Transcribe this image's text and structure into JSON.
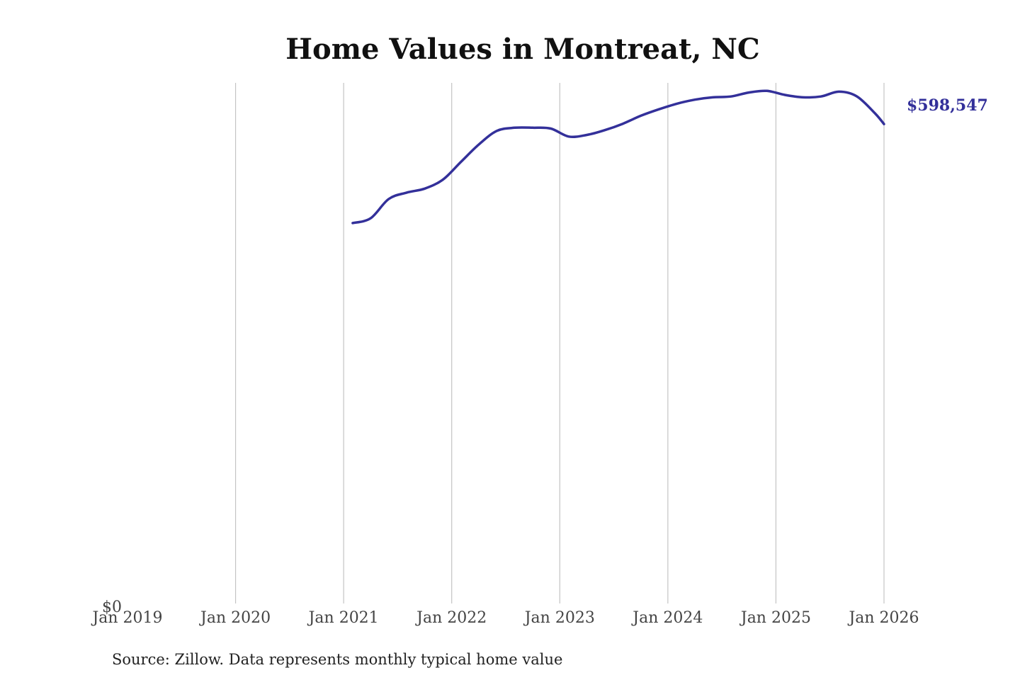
{
  "chart_data": {
    "type": "line",
    "title": "Home Values in Montreat, NC",
    "xlabel": "",
    "ylabel": "",
    "source": "Source: Zillow. Data represents monthly typical home value",
    "x_ticks": [
      "Jan 2019",
      "Jan 2020",
      "Jan 2021",
      "Jan 2022",
      "Jan 2023",
      "Jan 2024",
      "Jan 2025",
      "Jan 2026"
    ],
    "y_ticks": [
      "$0"
    ],
    "xlim": [
      "2019-01",
      "2026-01"
    ],
    "ylim": [
      0,
      650000
    ],
    "grid": "vertical",
    "series": [
      {
        "color": "#33309a",
        "end_label": "$598,547",
        "points": [
          {
            "x": "2021-02",
            "y": 475000
          },
          {
            "x": "2021-04",
            "y": 481000
          },
          {
            "x": "2021-06",
            "y": 505000
          },
          {
            "x": "2021-08",
            "y": 513000
          },
          {
            "x": "2021-10",
            "y": 518000
          },
          {
            "x": "2021-12",
            "y": 529000
          },
          {
            "x": "2022-02",
            "y": 551000
          },
          {
            "x": "2022-04",
            "y": 573000
          },
          {
            "x": "2022-06",
            "y": 590000
          },
          {
            "x": "2022-08",
            "y": 594000
          },
          {
            "x": "2022-10",
            "y": 594000
          },
          {
            "x": "2022-12",
            "y": 593000
          },
          {
            "x": "2023-02",
            "y": 583000
          },
          {
            "x": "2023-04",
            "y": 585000
          },
          {
            "x": "2023-06",
            "y": 591000
          },
          {
            "x": "2023-08",
            "y": 599000
          },
          {
            "x": "2023-10",
            "y": 609000
          },
          {
            "x": "2023-12",
            "y": 617000
          },
          {
            "x": "2024-02",
            "y": 624000
          },
          {
            "x": "2024-04",
            "y": 629000
          },
          {
            "x": "2024-06",
            "y": 632000
          },
          {
            "x": "2024-08",
            "y": 633000
          },
          {
            "x": "2024-10",
            "y": 638000
          },
          {
            "x": "2024-12",
            "y": 640000
          },
          {
            "x": "2025-02",
            "y": 635000
          },
          {
            "x": "2025-04",
            "y": 632000
          },
          {
            "x": "2025-06",
            "y": 633000
          },
          {
            "x": "2025-08",
            "y": 639000
          },
          {
            "x": "2025-10",
            "y": 633000
          },
          {
            "x": "2025-12",
            "y": 612000
          },
          {
            "x": "2026-01",
            "y": 598547
          }
        ]
      }
    ]
  }
}
